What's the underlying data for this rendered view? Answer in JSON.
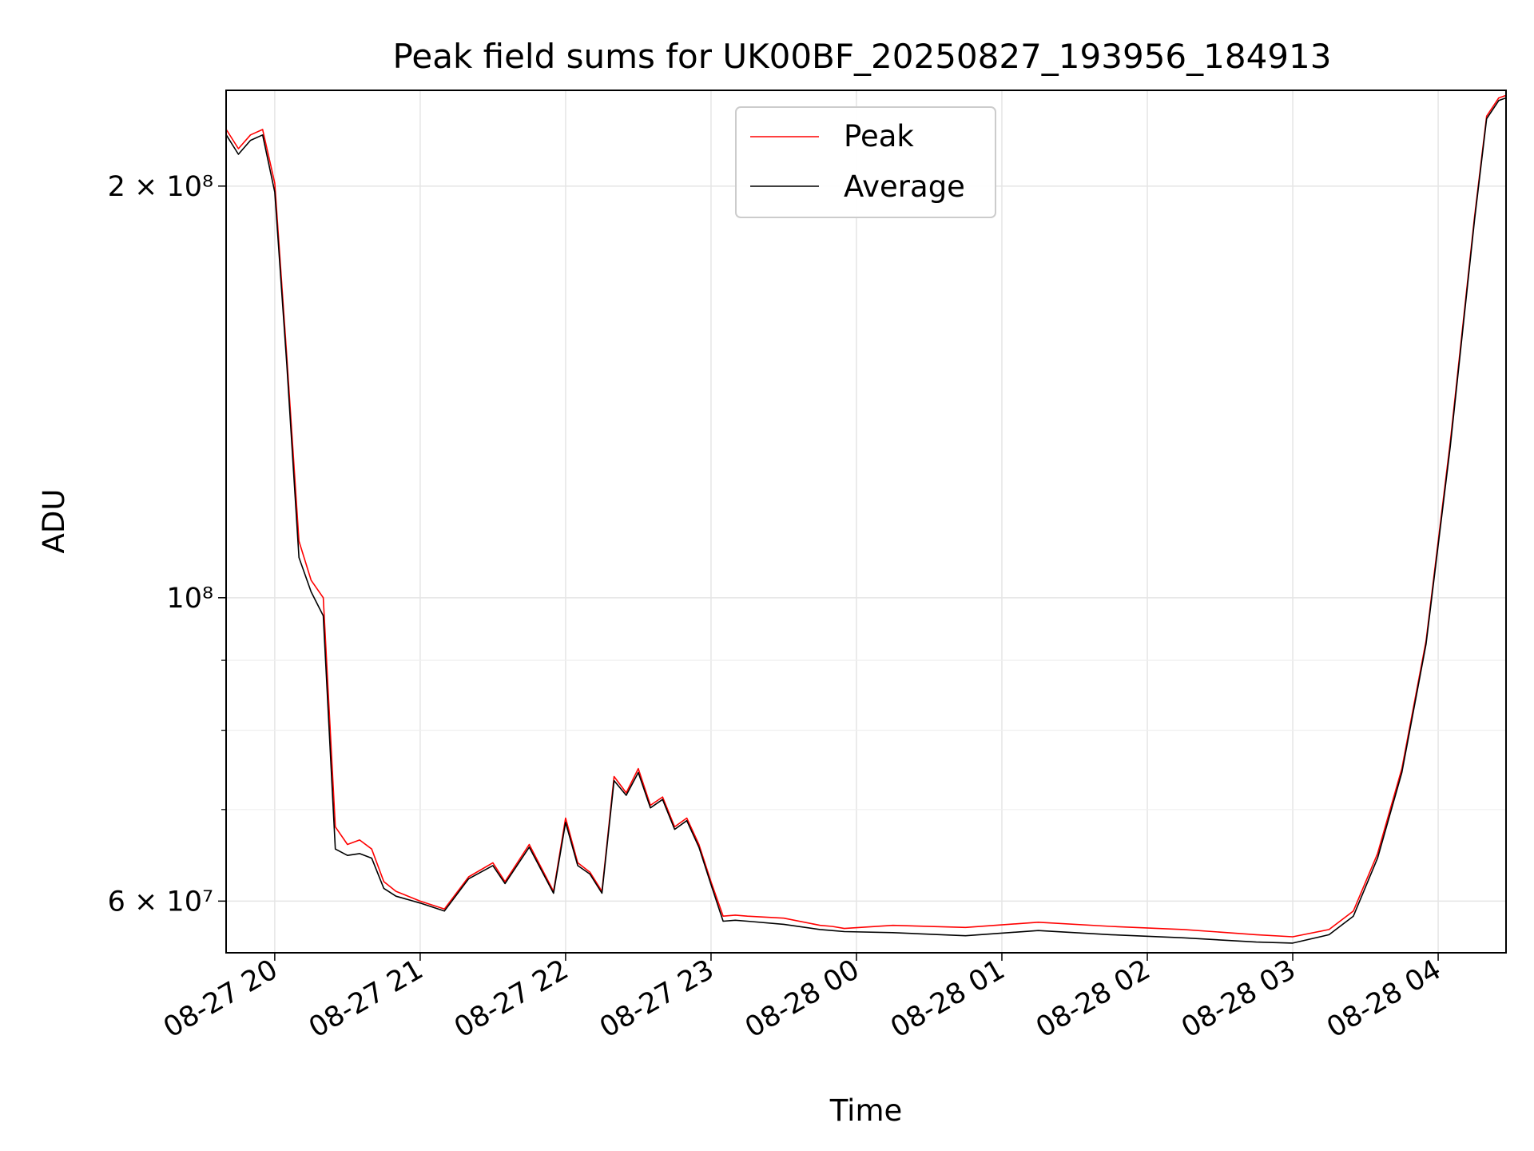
{
  "chart_data": {
    "type": "line",
    "title": "Peak field sums for UK00BF_20250827_193956_184913",
    "xlabel": "Time",
    "ylabel": "ADU",
    "yscale": "log",
    "xlim": [
      "2025-08-27 19:39:56",
      "2025-08-28 04:28:00"
    ],
    "ylim": [
      55000000,
      235000000
    ],
    "grid": true,
    "legend_position": "top-center",
    "x_ticks": [
      "08-27 20",
      "08-27 21",
      "08-27 22",
      "08-27 23",
      "08-28 00",
      "08-28 01",
      "08-28 02",
      "08-28 03",
      "08-28 04"
    ],
    "y_ticks": [
      {
        "value": 60000000,
        "label": "6 × 10⁷"
      },
      {
        "value": 100000000,
        "label": "10⁸"
      },
      {
        "value": 200000000,
        "label": "2 × 10⁸"
      }
    ],
    "y_minor_ticks": [
      70000000,
      80000000,
      90000000
    ],
    "x": [
      "2025-08-27 19:40",
      "2025-08-27 19:45",
      "2025-08-27 19:50",
      "2025-08-27 19:55",
      "2025-08-27 20:00",
      "2025-08-27 20:05",
      "2025-08-27 20:10",
      "2025-08-27 20:15",
      "2025-08-27 20:20",
      "2025-08-27 20:25",
      "2025-08-27 20:30",
      "2025-08-27 20:35",
      "2025-08-27 20:40",
      "2025-08-27 20:45",
      "2025-08-27 20:50",
      "2025-08-27 21:00",
      "2025-08-27 21:10",
      "2025-08-27 21:20",
      "2025-08-27 21:30",
      "2025-08-27 21:35",
      "2025-08-27 21:45",
      "2025-08-27 21:55",
      "2025-08-27 22:00",
      "2025-08-27 22:05",
      "2025-08-27 22:10",
      "2025-08-27 22:15",
      "2025-08-27 22:20",
      "2025-08-27 22:25",
      "2025-08-27 22:30",
      "2025-08-27 22:35",
      "2025-08-27 22:40",
      "2025-08-27 22:45",
      "2025-08-27 22:50",
      "2025-08-27 22:55",
      "2025-08-27 23:00",
      "2025-08-27 23:05",
      "2025-08-27 23:10",
      "2025-08-27 23:15",
      "2025-08-27 23:30",
      "2025-08-27 23:45",
      "2025-08-27 23:50",
      "2025-08-27 23:55",
      "2025-08-28 00:15",
      "2025-08-28 00:45",
      "2025-08-28 01:15",
      "2025-08-28 01:45",
      "2025-08-28 02:15",
      "2025-08-28 02:45",
      "2025-08-28 03:00",
      "2025-08-28 03:15",
      "2025-08-28 03:25",
      "2025-08-28 03:35",
      "2025-08-28 03:45",
      "2025-08-28 03:55",
      "2025-08-28 04:05",
      "2025-08-28 04:15",
      "2025-08-28 04:20",
      "2025-08-28 04:25",
      "2025-08-28 04:28"
    ],
    "series": [
      {
        "name": "Peak",
        "color": "#ff0000",
        "values": [
          220000000,
          213000000,
          218000000,
          220000000,
          201000000,
          150000000,
          110000000,
          103000000,
          100000000,
          68000000,
          66000000,
          66500000,
          65500000,
          62000000,
          61000000,
          60000000,
          59200000,
          62500000,
          64000000,
          62000000,
          66000000,
          61000000,
          69000000,
          64000000,
          63000000,
          61000000,
          74000000,
          72000000,
          75000000,
          70500000,
          71500000,
          68000000,
          69000000,
          66000000,
          62000000,
          58500000,
          58600000,
          58500000,
          58300000,
          57600000,
          57500000,
          57300000,
          57600000,
          57400000,
          57900000,
          57500000,
          57200000,
          56700000,
          56500000,
          57200000,
          59000000,
          65000000,
          75000000,
          93000000,
          130000000,
          190000000,
          225000000,
          232000000,
          233000000
        ]
      },
      {
        "name": "Average",
        "color": "#000000",
        "values": [
          218000000,
          211000000,
          216000000,
          218000000,
          198000000,
          148000000,
          107000000,
          101000000,
          97000000,
          65500000,
          64800000,
          65000000,
          64500000,
          61300000,
          60500000,
          59800000,
          59000000,
          62300000,
          63700000,
          61800000,
          65700000,
          60800000,
          68500000,
          63700000,
          62800000,
          60800000,
          73500000,
          71700000,
          74500000,
          70200000,
          71200000,
          67700000,
          68700000,
          65700000,
          61700000,
          58000000,
          58100000,
          58000000,
          57700000,
          57200000,
          57100000,
          57000000,
          56900000,
          56600000,
          57100000,
          56700000,
          56400000,
          56000000,
          55900000,
          56700000,
          58500000,
          64500000,
          74500000,
          92500000,
          129000000,
          189000000,
          224000000,
          231000000,
          232000000
        ]
      }
    ]
  }
}
